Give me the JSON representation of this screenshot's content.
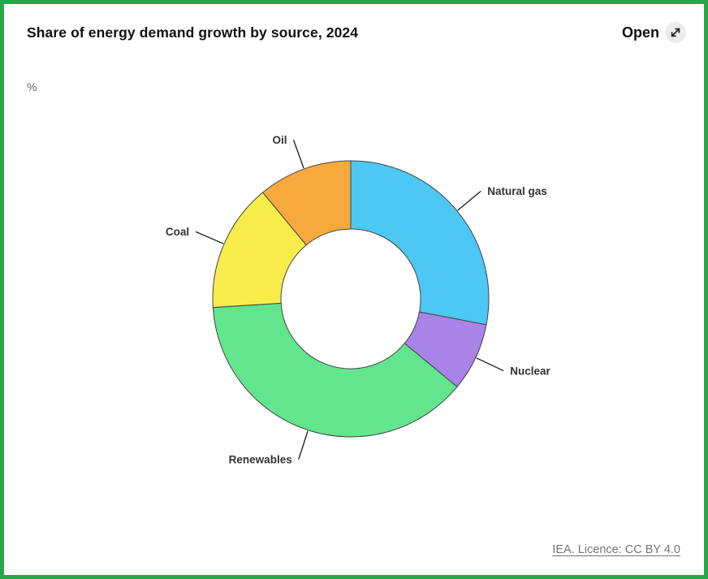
{
  "header": {
    "title": "Share of energy demand growth by source, 2024",
    "open_label": "Open"
  },
  "icons": {
    "open_expand": "diagonal-expand-arrow"
  },
  "chart_data": {
    "type": "pie",
    "subtype": "donut",
    "title": "Share of energy demand growth by source, 2024",
    "unit": "%",
    "labels": [
      "Natural gas",
      "Nuclear",
      "Renewables",
      "Coal",
      "Oil"
    ],
    "values": [
      28,
      8,
      38,
      15,
      11
    ],
    "colors": [
      "#4dc7f4",
      "#a983e8",
      "#63e58d",
      "#f8ec4b",
      "#f6a93d"
    ],
    "start_angle_deg": 0,
    "direction": "clockwise",
    "legend": "none",
    "label_style": "outside-with-leader-lines"
  },
  "footer": {
    "attribution": "IEA. Licence: CC BY 4.0"
  },
  "colors": {
    "frame_border": "#27a747",
    "slice_stroke": "#444444",
    "label_text": "#333333",
    "attribution_text": "#767676"
  }
}
